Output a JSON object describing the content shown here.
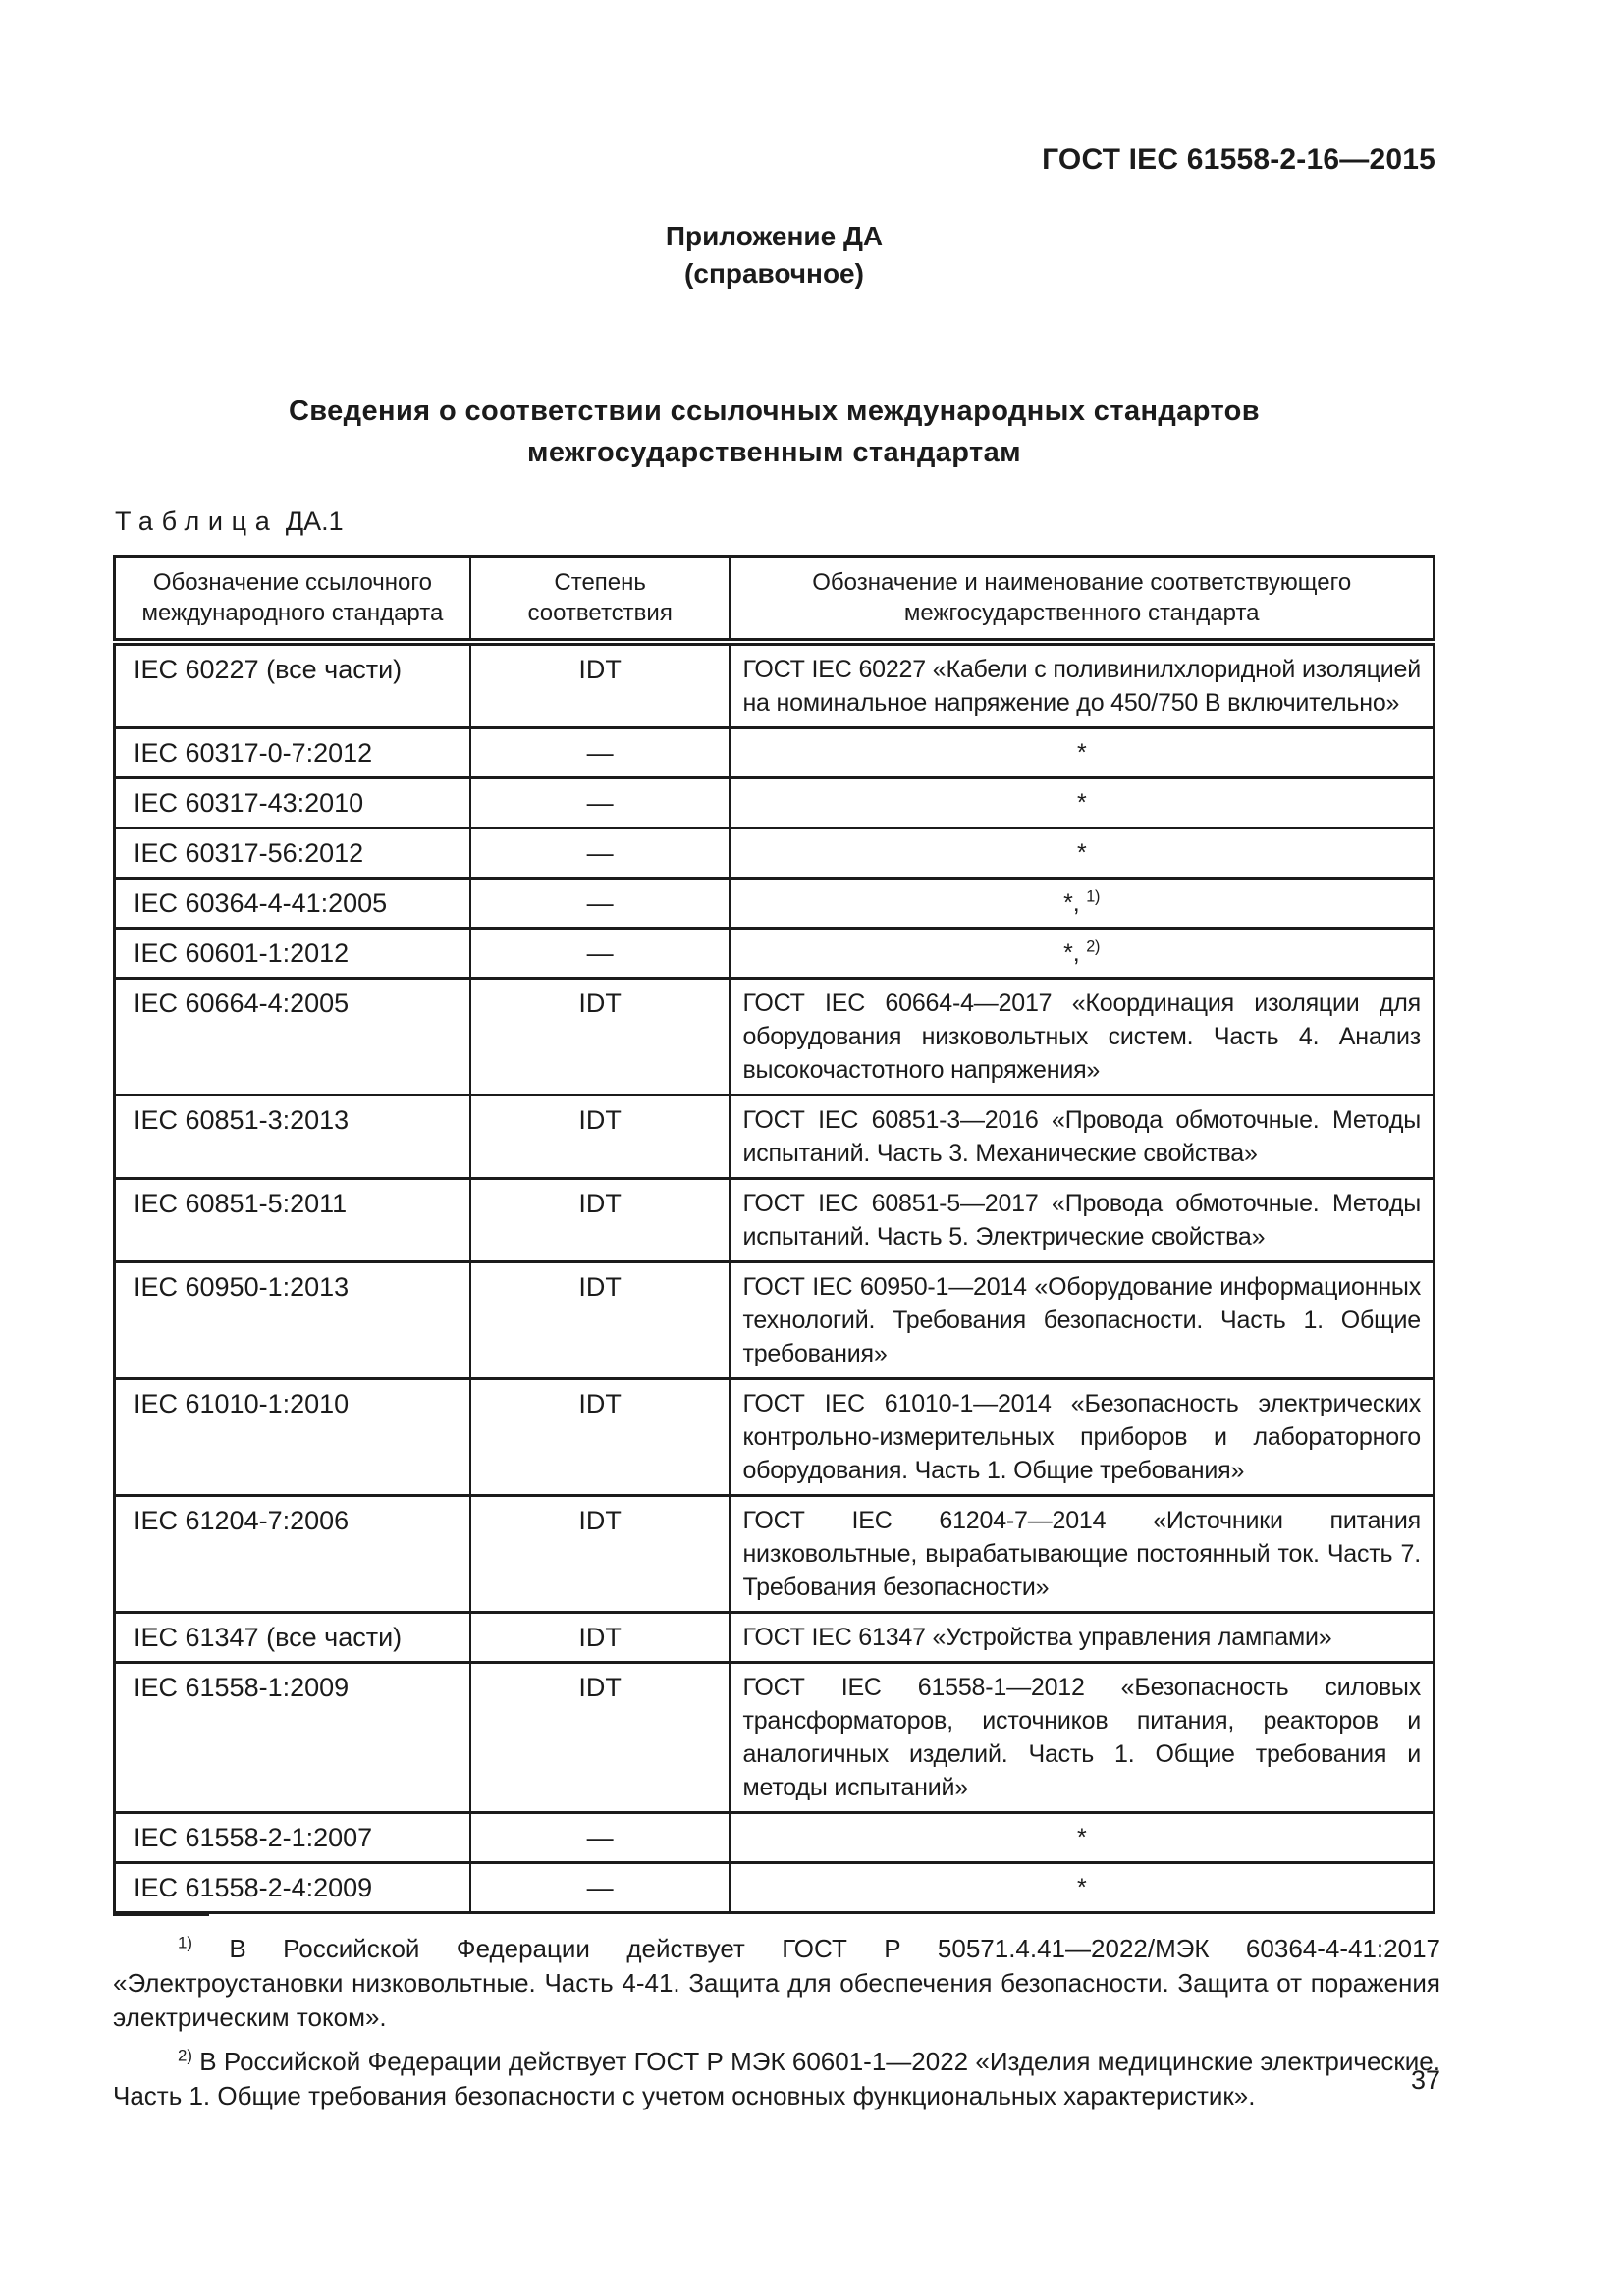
{
  "page": {
    "header": "ГОСТ IEC 61558-2-16—2015",
    "appendix_title": "Приложение ДА",
    "appendix_subtitle": "(справочное)",
    "title_line1": "Сведения о соответствии ссылочных международных стандартов",
    "title_line2": "межгосударственным  стандартам",
    "table_caption_label": "Таблица",
    "table_caption_number": "ДА.1",
    "page_number": "37"
  },
  "table": {
    "headers": [
      "Обозначение ссылочного международного стандарта",
      "Степень соответствия",
      "Обозначение и наименование соответствующего межгосударственного стандарта"
    ],
    "rows": [
      {
        "std": "IEC 60227 (все части)",
        "degree": "IDT",
        "match": "ГОСТ IEC 60227 «Кабели с поливинилхлоридной изоляцией на номинальное напряжение до 450/750 В включительно»",
        "center": false
      },
      {
        "std": "IEC 60317-0-7:2012",
        "degree": "—",
        "match": "*",
        "center": true
      },
      {
        "std": "IEC 60317-43:2010",
        "degree": "—",
        "match": "*",
        "center": true
      },
      {
        "std": "IEC 60317-56:2012",
        "degree": "—",
        "match": "*",
        "center": true
      },
      {
        "std": "IEC 60364-4-41:2005",
        "degree": "—",
        "match": "*",
        "note_ref": "1)",
        "center": true
      },
      {
        "std": "IEC 60601-1:2012",
        "degree": "—",
        "match": "*",
        "note_ref": "2)",
        "center": true
      },
      {
        "std": "IEC 60664-4:2005",
        "degree": "IDT",
        "match": "ГОСТ IEC 60664-4—2017 «Координация изоляции для оборудования низковольтных систем. Часть 4. Анализ высокочастотного напряжения»",
        "center": false
      },
      {
        "std": "IEC 60851-3:2013",
        "degree": "IDT",
        "match": "ГОСТ IEC 60851-3—2016 «Провода обмоточные. Методы испытаний. Часть 3. Механические свойства»",
        "center": false
      },
      {
        "std": "IEC 60851-5:2011",
        "degree": "IDT",
        "match": "ГОСТ IEC 60851-5—2017 «Провода обмоточные. Методы испытаний. Часть 5. Электрические свойства»",
        "center": false
      },
      {
        "std": "IEC 60950-1:2013",
        "degree": "IDT",
        "match": "ГОСТ IEC 60950-1—2014 «Оборудование информационных технологий. Требования безопасности. Часть 1. Общие требования»",
        "center": false
      },
      {
        "std": "IEC 61010-1:2010",
        "degree": "IDT",
        "match": "ГОСТ IEC 61010-1—2014 «Безопасность электрических контрольно-измерительных приборов и лабораторного оборудования. Часть 1. Общие требования»",
        "center": false
      },
      {
        "std": "IEC 61204-7:2006",
        "degree": "IDT",
        "match": "ГОСТ IEC 61204-7—2014 «Источники питания низковольтные, вырабатывающие постоянный ток. Часть 7. Требования безопасности»",
        "center": false
      },
      {
        "std": "IEC 61347 (все части)",
        "degree": "IDT",
        "match": "ГОСТ IEC 61347 «Устройства управления лампами»",
        "center": false
      },
      {
        "std": "IEC 61558-1:2009",
        "degree": "IDT",
        "match": "ГОСТ IEC 61558-1—2012 «Безопасность силовых трансформаторов, источников питания, реакторов и аналогичных изделий. Часть 1. Общие требования и методы испытаний»",
        "center": false
      },
      {
        "std": "IEC 61558-2-1:2007",
        "degree": "—",
        "match": "*",
        "center": true
      },
      {
        "std": "IEC 61558-2-4:2009",
        "degree": "—",
        "match": "*",
        "center": true
      }
    ]
  },
  "footnotes": [
    {
      "ref": "1)",
      "text": "В Российской Федерации действует ГОСТ Р 50571.4.41—2022/МЭК 60364-4-41:2017 «Электроустановки низковольтные. Часть 4-41. Защита для обеспечения безопасности. Защита от поражения электрическим током»."
    },
    {
      "ref": "2)",
      "text": "В Российской Федерации действует ГОСТ Р МЭК 60601-1—2022 «Изделия медицинские электрические. Часть 1. Общие требования безопасности с учетом основных функциональных характеристик»."
    }
  ]
}
